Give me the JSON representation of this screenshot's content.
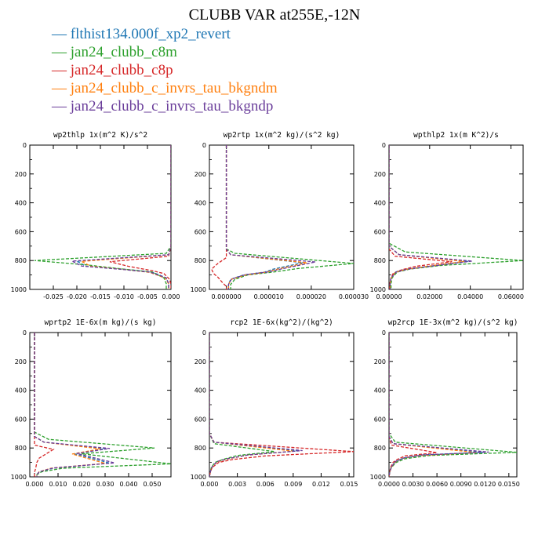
{
  "title": "CLUBB VAR at255E,-12N",
  "legend": [
    {
      "label": "flthist134.000f_xp2_revert",
      "color": "#1f77b4"
    },
    {
      "label": "jan24_clubb_c8m",
      "color": "#2ca02c"
    },
    {
      "label": "jan24_clubb_c8p",
      "color": "#d62728"
    },
    {
      "label": "jan24_clubb_c_invrs_tau_bkgndm",
      "color": "#ff7f0e"
    },
    {
      "label": "jan24_clubb_c_invrs_tau_bkgndp",
      "color": "#6a3d9a"
    }
  ],
  "chart_data": [
    {
      "type": "line",
      "title": "wp2thlp  1x(m^2 K)/s^2",
      "xlim": [
        -0.03,
        0.0
      ],
      "ylim": [
        1000,
        0
      ],
      "xticks": [
        -0.025,
        -0.02,
        -0.015,
        -0.01,
        -0.005,
        0.0
      ],
      "xtick_labels": [
        "-0.025",
        "-0.020",
        "-0.015",
        "-0.010",
        "-0.005",
        "0.000"
      ],
      "yticks": [
        0,
        200,
        400,
        600,
        800,
        1000
      ],
      "series": [
        {
          "color": "#1f77b4",
          "x": [
            0,
            0,
            -0.0005,
            -0.02,
            -0.018,
            -0.01,
            -0.004,
            -0.001,
            -0.0005,
            -0.0005
          ],
          "y": [
            0,
            700,
            760,
            805,
            840,
            860,
            880,
            920,
            960,
            1000
          ]
        },
        {
          "color": "#2ca02c",
          "x": [
            0,
            0,
            -0.001,
            -0.029,
            -0.018,
            -0.01,
            -0.004,
            -0.0015,
            -0.001,
            -0.001
          ],
          "y": [
            0,
            700,
            750,
            800,
            830,
            860,
            880,
            920,
            960,
            1000
          ]
        },
        {
          "color": "#d62728",
          "x": [
            0,
            0,
            -0.0005,
            -0.013,
            -0.009,
            -0.004,
            -0.0015,
            -0.0003,
            0,
            0
          ],
          "y": [
            0,
            700,
            770,
            808,
            840,
            870,
            890,
            930,
            970,
            1000
          ]
        },
        {
          "color": "#ff7f0e",
          "x": [
            0,
            0,
            -0.0005,
            -0.019,
            -0.017,
            -0.01,
            -0.0045,
            -0.0012,
            -0.0005,
            -0.0005
          ],
          "y": [
            0,
            700,
            760,
            806,
            840,
            862,
            882,
            922,
            962,
            1000
          ]
        },
        {
          "color": "#6a3d9a",
          "x": [
            0,
            0,
            -0.0005,
            -0.021,
            -0.019,
            -0.011,
            -0.0045,
            -0.001,
            -0.0005,
            -0.0005
          ],
          "y": [
            0,
            700,
            760,
            804,
            838,
            860,
            880,
            920,
            960,
            1000
          ]
        }
      ]
    },
    {
      "type": "line",
      "title": "wp2rtp  1x(m^2 kg)/(s^2 kg)",
      "xlim": [
        -4e-06,
        3e-05
      ],
      "ylim": [
        1000,
        0
      ],
      "xticks": [
        0.0,
        1e-05,
        2e-05,
        3e-05
      ],
      "xtick_labels": [
        "0.000000",
        "0.000010",
        "0.000020",
        "0.000030"
      ],
      "yticks": [
        0,
        200,
        400,
        600,
        800,
        1000
      ],
      "series": [
        {
          "color": "#1f77b4",
          "x": [
            0,
            0,
            1e-06,
            1.8e-05,
            1.1e-05,
            9e-06,
            4e-06,
            1e-06,
            5e-07,
            5e-07
          ],
          "y": [
            0,
            720,
            760,
            815,
            860,
            880,
            900,
            930,
            965,
            1000
          ]
        },
        {
          "color": "#2ca02c",
          "x": [
            0,
            0,
            2e-06,
            3e-05,
            1.7e-05,
            1.1e-05,
            5e-06,
            2e-06,
            1e-06,
            1e-06
          ],
          "y": [
            0,
            720,
            750,
            820,
            855,
            880,
            900,
            930,
            965,
            1000
          ]
        },
        {
          "color": "#d62728",
          "x": [
            0,
            0,
            0,
            -2e-06,
            -3.5e-06,
            -3e-06,
            -2e-06,
            -1e-06,
            0,
            0
          ],
          "y": [
            0,
            720,
            780,
            820,
            860,
            890,
            915,
            950,
            980,
            1000
          ]
        },
        {
          "color": "#ff7f0e",
          "x": [
            0,
            0,
            1e-06,
            1.9e-05,
            1.2e-05,
            9.5e-06,
            4.5e-06,
            1.2e-06,
            5e-07,
            5e-07
          ],
          "y": [
            0,
            720,
            760,
            815,
            860,
            880,
            900,
            930,
            965,
            1000
          ]
        },
        {
          "color": "#6a3d9a",
          "x": [
            0,
            0,
            1e-06,
            2.1e-05,
            1.3e-05,
            1e-05,
            4.5e-06,
            1.2e-06,
            5e-07,
            5e-07
          ],
          "y": [
            0,
            720,
            760,
            810,
            858,
            878,
            898,
            928,
            965,
            1000
          ]
        }
      ]
    },
    {
      "type": "line",
      "title": "wpthlp2  1x(m K^2)/s",
      "xlim": [
        0.0,
        0.066
      ],
      "ylim": [
        1000,
        0
      ],
      "xticks": [
        0.0,
        0.02,
        0.04,
        0.06
      ],
      "xtick_labels": [
        "0.00000",
        "0.02000",
        "0.04000",
        "0.06000"
      ],
      "yticks": [
        0,
        200,
        400,
        600,
        800,
        1000
      ],
      "series": [
        {
          "color": "#1f77b4",
          "x": [
            0,
            0,
            0.005,
            0.039,
            0.02,
            0.008,
            0.003,
            0.001,
            0.0005,
            0.0005
          ],
          "y": [
            0,
            700,
            760,
            805,
            840,
            860,
            880,
            920,
            960,
            1000
          ]
        },
        {
          "color": "#2ca02c",
          "x": [
            0,
            0,
            0.008,
            0.066,
            0.025,
            0.01,
            0.004,
            0.0015,
            0.001,
            0.001
          ],
          "y": [
            0,
            680,
            740,
            800,
            835,
            860,
            880,
            920,
            960,
            1000
          ]
        },
        {
          "color": "#d62728",
          "x": [
            0,
            0,
            0.003,
            0.031,
            0.013,
            0.006,
            0.002,
            0.0008,
            0.0003,
            0.0003
          ],
          "y": [
            0,
            720,
            770,
            808,
            840,
            865,
            890,
            930,
            965,
            1000
          ]
        },
        {
          "color": "#ff7f0e",
          "x": [
            0,
            0,
            0.005,
            0.037,
            0.018,
            0.008,
            0.003,
            0.001,
            0.0005,
            0.0005
          ],
          "y": [
            0,
            700,
            760,
            806,
            842,
            862,
            882,
            922,
            962,
            1000
          ]
        },
        {
          "color": "#6a3d9a",
          "x": [
            0,
            0,
            0.005,
            0.041,
            0.021,
            0.009,
            0.0035,
            0.001,
            0.0005,
            0.0005
          ],
          "y": [
            0,
            700,
            760,
            804,
            838,
            860,
            880,
            920,
            960,
            1000
          ]
        }
      ]
    },
    {
      "type": "line",
      "title": "wprtp2  1E-6x(m kg)/(s kg)",
      "xlim": [
        -0.002,
        0.058
      ],
      "ylim": [
        1000,
        0
      ],
      "xticks": [
        0.0,
        0.01,
        0.02,
        0.03,
        0.04,
        0.05
      ],
      "xtick_labels": [
        "0.000",
        "0.010",
        "0.020",
        "0.030",
        "0.040",
        "0.050"
      ],
      "yticks": [
        0,
        200,
        400,
        600,
        800,
        1000
      ],
      "series": [
        {
          "color": "#1f77b4",
          "x": [
            0,
            0,
            0.004,
            0.03,
            0.017,
            0.032,
            0.008,
            0.002,
            0.001,
            0.001
          ],
          "y": [
            0,
            720,
            760,
            805,
            840,
            905,
            940,
            965,
            985,
            1000
          ]
        },
        {
          "color": "#2ca02c",
          "x": [
            0,
            0,
            0.006,
            0.051,
            0.02,
            0.058,
            0.012,
            0.003,
            0.001,
            0.001
          ],
          "y": [
            0,
            690,
            740,
            800,
            840,
            910,
            940,
            965,
            985,
            1000
          ]
        },
        {
          "color": "#d62728",
          "x": [
            0,
            0,
            0,
            0.008,
            0.005,
            0.002,
            0.001,
            0.0005,
            0,
            0
          ],
          "y": [
            0,
            730,
            780,
            810,
            840,
            870,
            900,
            940,
            970,
            1000
          ]
        },
        {
          "color": "#ff7f0e",
          "x": [
            0,
            0,
            0.004,
            0.028,
            0.016,
            0.03,
            0.007,
            0.002,
            0.001,
            0.001
          ],
          "y": [
            0,
            720,
            760,
            806,
            842,
            907,
            940,
            965,
            985,
            1000
          ]
        },
        {
          "color": "#6a3d9a",
          "x": [
            0,
            0,
            0.004,
            0.032,
            0.018,
            0.034,
            0.008,
            0.002,
            0.001,
            0.001
          ],
          "y": [
            0,
            720,
            760,
            803,
            838,
            903,
            938,
            965,
            985,
            1000
          ]
        }
      ]
    },
    {
      "type": "line",
      "title": "rcp2  1E-6x(kg^2)/(kg^2)",
      "xlim": [
        0.0,
        0.0155
      ],
      "ylim": [
        1000,
        0
      ],
      "xticks": [
        0.0,
        0.003,
        0.006,
        0.009,
        0.012,
        0.015
      ],
      "xtick_labels": [
        "0.000",
        "0.003",
        "0.006",
        "0.009",
        "0.012",
        "0.015"
      ],
      "yticks": [
        0,
        200,
        400,
        600,
        800,
        1000
      ],
      "series": [
        {
          "color": "#1f77b4",
          "x": [
            0,
            0,
            0.0005,
            0.0095,
            0.004,
            0.002,
            0.0008,
            0.0003,
            0.0001,
            0
          ],
          "y": [
            0,
            700,
            760,
            820,
            850,
            875,
            895,
            930,
            965,
            1000
          ]
        },
        {
          "color": "#2ca02c",
          "x": [
            0,
            0,
            0.0005,
            0.007,
            0.003,
            0.0015,
            0.0006,
            0.0002,
            0.0001,
            0
          ],
          "y": [
            0,
            700,
            770,
            825,
            852,
            878,
            900,
            935,
            965,
            1000
          ]
        },
        {
          "color": "#d62728",
          "x": [
            0,
            0,
            0.0005,
            0.0155,
            0.006,
            0.0025,
            0.001,
            0.0003,
            0.0001,
            0
          ],
          "y": [
            0,
            700,
            760,
            825,
            855,
            880,
            900,
            935,
            965,
            1000
          ]
        },
        {
          "color": "#ff7f0e",
          "x": [
            0,
            0,
            0.0005,
            0.009,
            0.004,
            0.002,
            0.0008,
            0.0003,
            0.0001,
            0
          ],
          "y": [
            0,
            700,
            760,
            822,
            850,
            876,
            896,
            932,
            965,
            1000
          ]
        },
        {
          "color": "#6a3d9a",
          "x": [
            0,
            0,
            0.0005,
            0.01,
            0.0042,
            0.002,
            0.0008,
            0.0003,
            0.0001,
            0
          ],
          "y": [
            0,
            700,
            760,
            818,
            848,
            874,
            894,
            930,
            965,
            1000
          ]
        }
      ]
    },
    {
      "type": "line",
      "title": "wp2rcp  1E-3x(m^2 kg)/(s^2 kg)",
      "xlim": [
        0.0,
        0.016
      ],
      "ylim": [
        1000,
        0
      ],
      "xticks": [
        0.0,
        0.003,
        0.006,
        0.009,
        0.012,
        0.015
      ],
      "xtick_labels": [
        "0.0000",
        "0.0030",
        "0.0060",
        "0.0090",
        "0.0120",
        "0.0150"
      ],
      "yticks": [
        0,
        200,
        400,
        600,
        800,
        1000
      ],
      "series": [
        {
          "color": "#1f77b4",
          "x": [
            0,
            0,
            0.0005,
            0.0118,
            0.004,
            0.0018,
            0.0008,
            0.0003,
            0.0001,
            0
          ],
          "y": [
            0,
            720,
            770,
            830,
            850,
            870,
            895,
            930,
            965,
            1000
          ]
        },
        {
          "color": "#2ca02c",
          "x": [
            0,
            0,
            0.0008,
            0.016,
            0.005,
            0.002,
            0.0009,
            0.0003,
            0.0001,
            0
          ],
          "y": [
            0,
            700,
            760,
            830,
            852,
            875,
            900,
            935,
            965,
            1000
          ]
        },
        {
          "color": "#d62728",
          "x": [
            0,
            0,
            0.0003,
            0.006,
            0.002,
            0.001,
            0.0005,
            0.0002,
            0.0001,
            0
          ],
          "y": [
            0,
            720,
            780,
            832,
            855,
            880,
            900,
            935,
            965,
            1000
          ]
        },
        {
          "color": "#ff7f0e",
          "x": [
            0,
            0,
            0.0005,
            0.011,
            0.0038,
            0.0017,
            0.0008,
            0.0003,
            0.0001,
            0
          ],
          "y": [
            0,
            720,
            770,
            832,
            852,
            872,
            896,
            932,
            965,
            1000
          ]
        },
        {
          "color": "#6a3d9a",
          "x": [
            0,
            0,
            0.0005,
            0.0125,
            0.0042,
            0.0019,
            0.0008,
            0.0003,
            0.0001,
            0
          ],
          "y": [
            0,
            720,
            770,
            828,
            848,
            868,
            894,
            930,
            965,
            1000
          ]
        }
      ]
    }
  ]
}
